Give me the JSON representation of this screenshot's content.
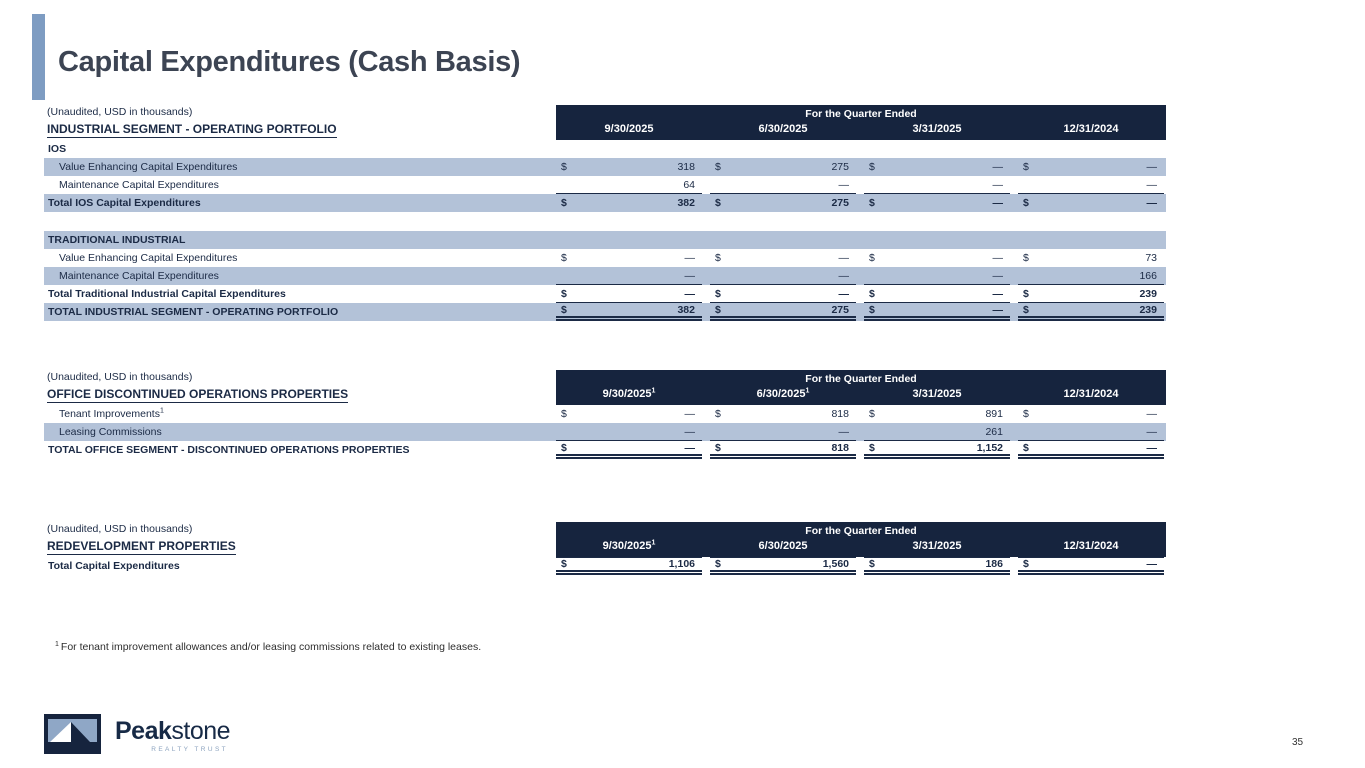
{
  "slide": {
    "title": "Capital Expenditures (Cash Basis)",
    "page_number": "35",
    "footnote": {
      "marker": "1",
      "text": "For tenant improvement allowances and/or leasing commissions related to existing leases."
    }
  },
  "logo": {
    "brand_bold": "Peak",
    "brand_light": "stone",
    "tagline": "REALTY TRUST"
  },
  "colors": {
    "header_navy": "#16243E",
    "row_blue": "#B3C2D8",
    "accent_bar_blue": "#7E9CC2"
  },
  "tables": [
    {
      "note": "(Unaudited, USD in thousands)",
      "title": "INDUSTRIAL SEGMENT - OPERATING PORTFOLIO",
      "banner": "For the Quarter Ended",
      "columns": [
        {
          "label": "9/30/2025",
          "sup": ""
        },
        {
          "label": "6/30/2025",
          "sup": ""
        },
        {
          "label": "3/31/2025",
          "sup": ""
        },
        {
          "label": "12/31/2024",
          "sup": ""
        }
      ],
      "rows": [
        {
          "type": "group",
          "label": "IOS",
          "shade": false
        },
        {
          "type": "data",
          "label": "Value Enhancing Capital Expenditures",
          "indent": true,
          "shade": true,
          "dollar": true,
          "values": [
            "318",
            "275",
            "—",
            "—"
          ]
        },
        {
          "type": "data",
          "label": "Maintenance Capital Expenditures",
          "indent": true,
          "shade": false,
          "dollar": false,
          "values": [
            "64",
            "—",
            "—",
            "—"
          ],
          "underline": "single"
        },
        {
          "type": "data",
          "label": "Total IOS Capital Expenditures",
          "bold": true,
          "shade": true,
          "dollar": true,
          "values": [
            "382",
            "275",
            "—",
            "—"
          ]
        },
        {
          "type": "spacer"
        },
        {
          "type": "group",
          "label": "TRADITIONAL INDUSTRIAL",
          "shade": true
        },
        {
          "type": "data",
          "label": "Value Enhancing Capital Expenditures",
          "indent": true,
          "shade": false,
          "dollar": true,
          "values": [
            "—",
            "—",
            "—",
            "73"
          ]
        },
        {
          "type": "data",
          "label": "Maintenance Capital Expenditures",
          "indent": true,
          "shade": true,
          "dollar": false,
          "values": [
            "—",
            "—",
            "—",
            "166"
          ],
          "underline": "single"
        },
        {
          "type": "data",
          "label": "Total Traditional Industrial Capital Expenditures",
          "bold": true,
          "shade": false,
          "dollar": true,
          "values": [
            "—",
            "—",
            "—",
            "239"
          ],
          "underline": "single"
        },
        {
          "type": "data",
          "label": "TOTAL INDUSTRIAL SEGMENT - OPERATING PORTFOLIO",
          "bold": true,
          "shade": true,
          "dollar": true,
          "values": [
            "382",
            "275",
            "—",
            "239"
          ],
          "underline": "double"
        }
      ]
    },
    {
      "note": "(Unaudited, USD in thousands)",
      "title": "OFFICE DISCONTINUED OPERATIONS PROPERTIES",
      "banner": "For the Quarter Ended",
      "columns": [
        {
          "label": "9/30/2025",
          "sup": "1"
        },
        {
          "label": "6/30/2025",
          "sup": "1"
        },
        {
          "label": "3/31/2025",
          "sup": ""
        },
        {
          "label": "12/31/2024",
          "sup": ""
        }
      ],
      "rows": [
        {
          "type": "data",
          "label": "Tenant Improvements",
          "sup": "1",
          "indent": true,
          "shade": false,
          "dollar": true,
          "values": [
            "—",
            "818",
            "891",
            "—"
          ]
        },
        {
          "type": "data",
          "label": "Leasing Commissions",
          "indent": true,
          "shade": true,
          "dollar": false,
          "values": [
            "—",
            "—",
            "261",
            "—"
          ],
          "underline": "single"
        },
        {
          "type": "data",
          "label": "TOTAL OFFICE SEGMENT - DISCONTINUED OPERATIONS PROPERTIES",
          "bold": true,
          "shade": false,
          "dollar": true,
          "values": [
            "—",
            "818",
            "1,152",
            "—"
          ],
          "underline": "double"
        }
      ]
    },
    {
      "note": "(Unaudited, USD in thousands)",
      "title": "REDEVELOPMENT PROPERTIES",
      "banner": "For the Quarter Ended",
      "columns": [
        {
          "label": "9/30/2025",
          "sup": "1"
        },
        {
          "label": "6/30/2025",
          "sup": ""
        },
        {
          "label": "3/31/2025",
          "sup": ""
        },
        {
          "label": "12/31/2024",
          "sup": ""
        }
      ],
      "rows": [
        {
          "type": "data",
          "label": "Total Capital Expenditures",
          "bold": true,
          "shade": false,
          "dollar": true,
          "values": [
            "1,106",
            "1,560",
            "186",
            "—"
          ],
          "topline": true,
          "underline": "double"
        }
      ]
    }
  ]
}
